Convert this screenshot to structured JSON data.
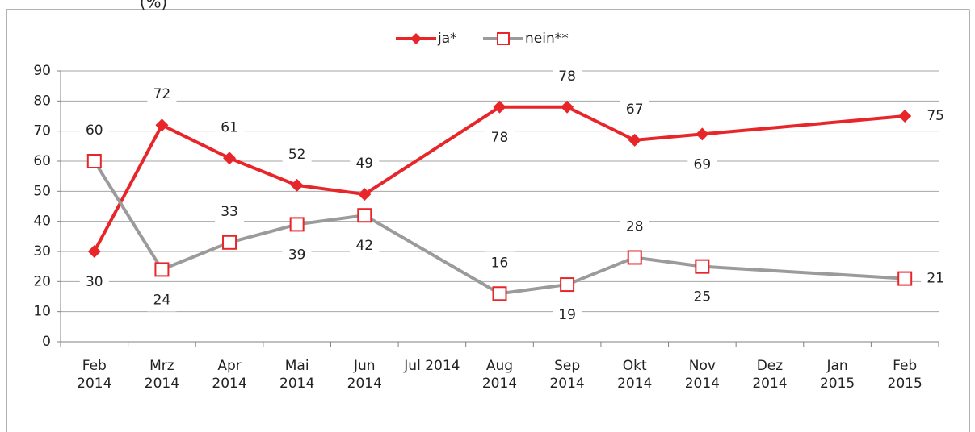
{
  "chart_data": {
    "type": "line",
    "title": "(%)",
    "categories": [
      [
        "Feb",
        "2014"
      ],
      [
        "Mrz",
        "2014"
      ],
      [
        "Apr",
        "2014"
      ],
      [
        "Mai",
        "2014"
      ],
      [
        "Jun",
        "2014"
      ],
      [
        "Jul 2014"
      ],
      [
        "Aug",
        "2014"
      ],
      [
        "Sep",
        "2014"
      ],
      [
        "Okt",
        "2014"
      ],
      [
        "Nov",
        "2014"
      ],
      [
        "Dez",
        "2014"
      ],
      [
        "Jan",
        "2015"
      ],
      [
        "Feb",
        "2015"
      ]
    ],
    "series": [
      {
        "name": "ja*",
        "color": "#e8262a",
        "values": [
          30,
          72,
          61,
          52,
          49,
          null,
          78,
          78,
          67,
          69,
          null,
          null,
          75
        ]
      },
      {
        "name": "nein**",
        "color": "#9b9b9b",
        "values": [
          60,
          24,
          33,
          39,
          42,
          null,
          16,
          19,
          28,
          25,
          null,
          null,
          21
        ]
      }
    ],
    "ylim": [
      0,
      90
    ],
    "yticks": [
      0,
      10,
      20,
      30,
      40,
      50,
      60,
      70,
      80,
      90
    ],
    "grid": true,
    "legend": "top"
  }
}
